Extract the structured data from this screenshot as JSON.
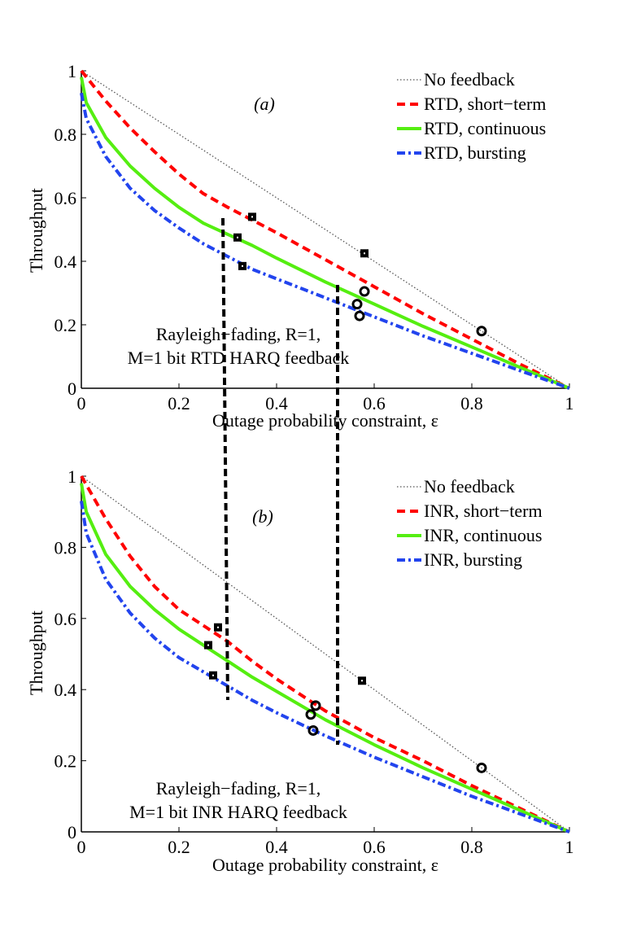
{
  "chart_data": [
    {
      "type": "line",
      "panel_label": "(a)",
      "xlabel": "Outage probability constraint, ε",
      "ylabel": "Throughput",
      "xlim": [
        0,
        1
      ],
      "ylim": [
        0,
        1
      ],
      "xticks": [
        "0",
        "0.2",
        "0.4",
        "0.6",
        "0.8",
        "1"
      ],
      "yticks": [
        "0",
        "0.2",
        "0.4",
        "0.6",
        "0.8",
        "1"
      ],
      "legend_position": "top-right",
      "annotation": [
        "Rayleigh−fading, R=1,",
        "M=1 bit RTD HARQ feedback"
      ],
      "series": [
        {
          "name": "No feedback",
          "style": "dotted",
          "color": "#555555",
          "x": [
            0,
            0.2,
            0.4,
            0.6,
            0.8,
            1
          ],
          "y": [
            1,
            0.8,
            0.6,
            0.4,
            0.2,
            0
          ]
        },
        {
          "name": "RTD, short−term",
          "style": "dashed",
          "color": "#ff0000",
          "x": [
            0,
            0.05,
            0.1,
            0.15,
            0.2,
            0.25,
            0.3,
            0.35,
            0.4,
            0.5,
            0.6,
            0.7,
            0.8,
            0.9,
            1
          ],
          "y": [
            1,
            0.905,
            0.82,
            0.745,
            0.675,
            0.613,
            0.57,
            0.53,
            0.49,
            0.405,
            0.32,
            0.235,
            0.155,
            0.075,
            0
          ]
        },
        {
          "name": "RTD, continuous",
          "style": "solid",
          "color": "#55ee11",
          "x": [
            0,
            0.01,
            0.05,
            0.1,
            0.15,
            0.2,
            0.25,
            0.3,
            0.35,
            0.4,
            0.5,
            0.6,
            0.7,
            0.8,
            0.9,
            1
          ],
          "y": [
            0.98,
            0.9,
            0.79,
            0.7,
            0.63,
            0.57,
            0.52,
            0.485,
            0.45,
            0.41,
            0.335,
            0.265,
            0.195,
            0.13,
            0.065,
            0
          ]
        },
        {
          "name": "RTD, bursting",
          "style": "dashdot",
          "color": "#2244ee",
          "x": [
            0,
            0.01,
            0.05,
            0.1,
            0.15,
            0.2,
            0.25,
            0.3,
            0.35,
            0.4,
            0.5,
            0.6,
            0.7,
            0.8,
            0.9,
            1
          ],
          "y": [
            0.93,
            0.85,
            0.73,
            0.63,
            0.56,
            0.505,
            0.455,
            0.415,
            0.375,
            0.345,
            0.285,
            0.225,
            0.165,
            0.11,
            0.055,
            0
          ]
        }
      ],
      "square_markers": [
        [
          0.35,
          0.54
        ],
        [
          0.58,
          0.425
        ],
        [
          0.32,
          0.475
        ],
        [
          0.33,
          0.385
        ]
      ],
      "circle_markers": [
        [
          0.58,
          0.305
        ],
        [
          0.565,
          0.265
        ],
        [
          0.57,
          0.228
        ],
        [
          0.82,
          0.18
        ]
      ]
    },
    {
      "type": "line",
      "panel_label": "(b)",
      "xlabel": "Outage probability constraint, ε",
      "ylabel": "Throughput",
      "xlim": [
        0,
        1
      ],
      "ylim": [
        0,
        1
      ],
      "xticks": [
        "0",
        "0.2",
        "0.4",
        "0.6",
        "0.8",
        "1"
      ],
      "yticks": [
        "0",
        "0.2",
        "0.4",
        "0.6",
        "0.8",
        "1"
      ],
      "legend_position": "top-right",
      "annotation": [
        "Rayleigh−fading, R=1,",
        "M=1 bit INR HARQ feedback"
      ],
      "series": [
        {
          "name": "No feedback",
          "style": "dotted",
          "color": "#555555",
          "x": [
            0,
            0.2,
            0.4,
            0.6,
            0.8,
            1
          ],
          "y": [
            1,
            0.8,
            0.6,
            0.4,
            0.2,
            0
          ]
        },
        {
          "name": "INR, short−term",
          "style": "dashed",
          "color": "#ff0000",
          "x": [
            0,
            0.05,
            0.1,
            0.15,
            0.2,
            0.25,
            0.3,
            0.35,
            0.4,
            0.5,
            0.6,
            0.7,
            0.8,
            0.9,
            1
          ],
          "y": [
            1,
            0.88,
            0.775,
            0.69,
            0.625,
            0.58,
            0.535,
            0.48,
            0.43,
            0.34,
            0.265,
            0.2,
            0.13,
            0.065,
            0
          ]
        },
        {
          "name": "INR, continuous",
          "style": "solid",
          "color": "#55ee11",
          "x": [
            0,
            0.01,
            0.05,
            0.1,
            0.15,
            0.2,
            0.25,
            0.3,
            0.35,
            0.4,
            0.5,
            0.6,
            0.7,
            0.8,
            0.9,
            1
          ],
          "y": [
            0.98,
            0.9,
            0.78,
            0.69,
            0.625,
            0.57,
            0.525,
            0.48,
            0.435,
            0.395,
            0.315,
            0.245,
            0.18,
            0.12,
            0.06,
            0
          ]
        },
        {
          "name": "INR, bursting",
          "style": "dashdot",
          "color": "#2244ee",
          "x": [
            0,
            0.01,
            0.05,
            0.1,
            0.15,
            0.2,
            0.25,
            0.3,
            0.35,
            0.4,
            0.5,
            0.6,
            0.7,
            0.8,
            0.9,
            1
          ],
          "y": [
            0.93,
            0.84,
            0.71,
            0.615,
            0.545,
            0.49,
            0.45,
            0.41,
            0.37,
            0.335,
            0.27,
            0.21,
            0.155,
            0.1,
            0.05,
            0
          ]
        }
      ],
      "square_markers": [
        [
          0.28,
          0.575
        ],
        [
          0.26,
          0.525
        ],
        [
          0.27,
          0.44
        ],
        [
          0.575,
          0.425
        ]
      ],
      "circle_markers": [
        [
          0.48,
          0.355
        ],
        [
          0.47,
          0.33
        ],
        [
          0.475,
          0.285
        ],
        [
          0.82,
          0.18
        ]
      ]
    }
  ],
  "connectors": {
    "description_values": [
      [
        0.29,
        0.3
      ],
      [
        0.525,
        0.525
      ]
    ]
  }
}
